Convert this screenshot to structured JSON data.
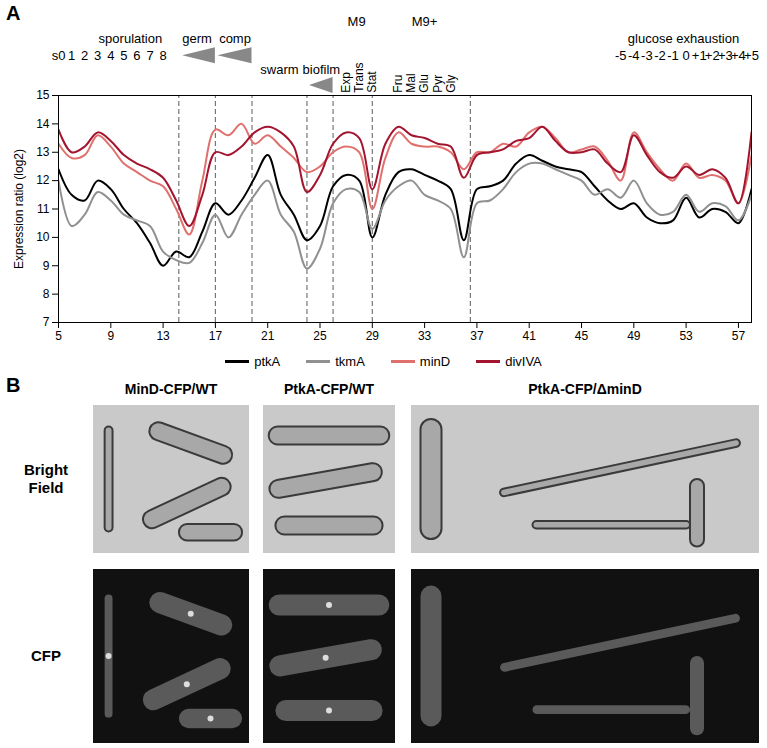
{
  "chart_data": {
    "type": "line",
    "panel_label": "A",
    "y_label": "Expression ratio (log2)",
    "xlim": [
      5,
      58
    ],
    "xticks": [
      5,
      9,
      13,
      17,
      21,
      25,
      29,
      33,
      37,
      41,
      45,
      49,
      53,
      57
    ],
    "ylim": [
      7,
      15
    ],
    "yticks": [
      7,
      8,
      9,
      10,
      11,
      12,
      13,
      14,
      15
    ],
    "grid": false,
    "legend": "bottom",
    "x": [
      5,
      6,
      7,
      8,
      9,
      10,
      11,
      12,
      13,
      14,
      15,
      16,
      17,
      18,
      19,
      20,
      21,
      22,
      23,
      24,
      25,
      26,
      27,
      28,
      29,
      30,
      31,
      32,
      33,
      34,
      35,
      36,
      37,
      38,
      39,
      40,
      41,
      42,
      43,
      44,
      45,
      46,
      47,
      48,
      49,
      50,
      51,
      52,
      53,
      54,
      55,
      56,
      57,
      58
    ],
    "series": [
      {
        "name": "ptkA",
        "color": "#000000",
        "values": [
          12.4,
          11.5,
          11.3,
          12.0,
          11.7,
          11.0,
          10.5,
          9.8,
          9.0,
          9.5,
          9.3,
          10.2,
          11.2,
          10.8,
          11.3,
          12.1,
          12.9,
          11.5,
          10.8,
          9.9,
          10.4,
          11.8,
          12.2,
          12.0,
          10.0,
          11.5,
          12.3,
          12.4,
          12.2,
          12.0,
          11.7,
          9.9,
          11.7,
          11.8,
          12.0,
          12.6,
          12.9,
          12.7,
          12.5,
          12.4,
          12.3,
          11.8,
          11.3,
          11.0,
          11.2,
          10.7,
          10.5,
          10.6,
          11.4,
          10.7,
          11.0,
          10.9,
          10.5,
          11.7
        ]
      },
      {
        "name": "tkmA",
        "color": "#909090",
        "values": [
          12.0,
          10.4,
          10.8,
          11.6,
          11.3,
          10.8,
          10.6,
          10.4,
          9.5,
          9.2,
          9.1,
          9.8,
          10.8,
          10.0,
          10.8,
          11.5,
          12.0,
          10.8,
          10.2,
          8.9,
          9.6,
          11.2,
          11.7,
          11.6,
          10.3,
          11.3,
          11.8,
          12.0,
          11.5,
          11.3,
          11.0,
          9.3,
          11.2,
          11.3,
          11.7,
          12.3,
          12.6,
          12.6,
          12.4,
          12.2,
          12.0,
          11.5,
          11.7,
          11.4,
          12.0,
          11.2,
          10.8,
          10.9,
          11.5,
          10.9,
          11.2,
          11.1,
          10.6,
          11.5
        ]
      },
      {
        "name": "minD",
        "color": "#e0706e",
        "values": [
          13.3,
          12.8,
          12.9,
          13.6,
          13.2,
          12.6,
          12.3,
          12.0,
          11.8,
          11.0,
          10.1,
          12.0,
          13.8,
          13.6,
          14.0,
          13.3,
          13.6,
          13.2,
          12.8,
          12.3,
          12.5,
          13.0,
          13.2,
          13.0,
          11.0,
          12.8,
          13.7,
          13.3,
          13.2,
          13.2,
          13.0,
          12.4,
          13.0,
          13.0,
          13.3,
          13.2,
          13.7,
          13.9,
          13.5,
          13.0,
          13.1,
          13.2,
          12.7,
          12.0,
          13.7,
          13.0,
          12.4,
          12.0,
          12.6,
          12.1,
          12.2,
          12.0,
          11.2,
          12.9
        ]
      },
      {
        "name": "divIVA",
        "color": "#a3142e",
        "values": [
          13.8,
          13.0,
          13.2,
          13.7,
          13.4,
          12.9,
          12.6,
          12.4,
          12.1,
          11.3,
          10.4,
          11.5,
          13.0,
          12.9,
          13.2,
          13.7,
          13.9,
          13.7,
          13.2,
          11.6,
          12.2,
          13.3,
          13.7,
          13.5,
          11.7,
          13.3,
          13.9,
          13.6,
          13.5,
          13.3,
          13.2,
          12.1,
          12.9,
          13.0,
          13.1,
          13.4,
          13.5,
          13.9,
          13.4,
          13.0,
          13.0,
          13.1,
          12.6,
          12.3,
          13.6,
          12.9,
          12.3,
          12.1,
          12.5,
          12.2,
          12.4,
          12.1,
          11.2,
          13.7
        ]
      }
    ],
    "vlines": [
      14.2,
      17,
      19.8,
      24,
      26,
      29,
      36.5
    ],
    "wedges": [
      {
        "x1": 14.5,
        "x2": 17,
        "y": 16.4
      },
      {
        "x1": 17.2,
        "x2": 19.8,
        "y": 16.4
      },
      {
        "x1": 24.2,
        "x2": 26,
        "y": 15.35
      }
    ],
    "annotations": [
      {
        "text": "sporulation",
        "x": 10.5,
        "y": 17.0
      },
      {
        "text": "s0",
        "x": 5,
        "y": 16.4
      },
      {
        "text": "1",
        "x": 6,
        "y": 16.4
      },
      {
        "text": "2",
        "x": 7,
        "y": 16.4
      },
      {
        "text": "3",
        "x": 8,
        "y": 16.4
      },
      {
        "text": "4",
        "x": 9,
        "y": 16.4
      },
      {
        "text": "5",
        "x": 10,
        "y": 16.4
      },
      {
        "text": "6",
        "x": 11,
        "y": 16.4
      },
      {
        "text": "7",
        "x": 12,
        "y": 16.4
      },
      {
        "text": "8",
        "x": 13,
        "y": 16.4
      },
      {
        "text": "germ",
        "x": 15.6,
        "y": 17.0
      },
      {
        "text": "comp",
        "x": 18.5,
        "y": 17.0
      },
      {
        "text": "swarm",
        "x": 21.9,
        "y": 15.9
      },
      {
        "text": "biofilm",
        "x": 25.1,
        "y": 15.9
      },
      {
        "text": "M9",
        "x": 27.8,
        "y": 17.6
      },
      {
        "text": "M9+",
        "x": 33,
        "y": 17.6
      },
      {
        "text": "glucose exhaustion",
        "x": 52.8,
        "y": 17.0
      },
      {
        "text": "-5",
        "x": 48,
        "y": 16.4
      },
      {
        "text": "-4",
        "x": 49,
        "y": 16.4
      },
      {
        "text": "-3",
        "x": 50,
        "y": 16.4
      },
      {
        "text": "-2",
        "x": 51,
        "y": 16.4
      },
      {
        "text": "-1",
        "x": 52,
        "y": 16.4
      },
      {
        "text": "0",
        "x": 53,
        "y": 16.4
      },
      {
        "text": "+1",
        "x": 54,
        "y": 16.4
      },
      {
        "text": "+2",
        "x": 55,
        "y": 16.4
      },
      {
        "text": "+3",
        "x": 56,
        "y": 16.4
      },
      {
        "text": "+4",
        "x": 57,
        "y": 16.4
      },
      {
        "text": "+5",
        "x": 58,
        "y": 16.4
      }
    ],
    "vertical_labels": [
      {
        "text": "Exp",
        "x": 27,
        "y": 15.1
      },
      {
        "text": "Trans",
        "x": 28,
        "y": 15.1
      },
      {
        "text": "Stat",
        "x": 29,
        "y": 15.1
      },
      {
        "text": "Fru",
        "x": 31,
        "y": 15.1
      },
      {
        "text": "Mal",
        "x": 32,
        "y": 15.1
      },
      {
        "text": "Glu",
        "x": 33,
        "y": 15.1
      },
      {
        "text": "Pyr",
        "x": 34,
        "y": 15.1
      },
      {
        "text": "Gly",
        "x": 35,
        "y": 15.1
      }
    ]
  },
  "panel_b": {
    "panel_label": "B",
    "columns": [
      "MinD-CFP/WT",
      "PtkA-CFP/WT",
      "PtkA-CFP/ΔminD"
    ],
    "rows": [
      "Bright Field",
      "CFP"
    ]
  }
}
